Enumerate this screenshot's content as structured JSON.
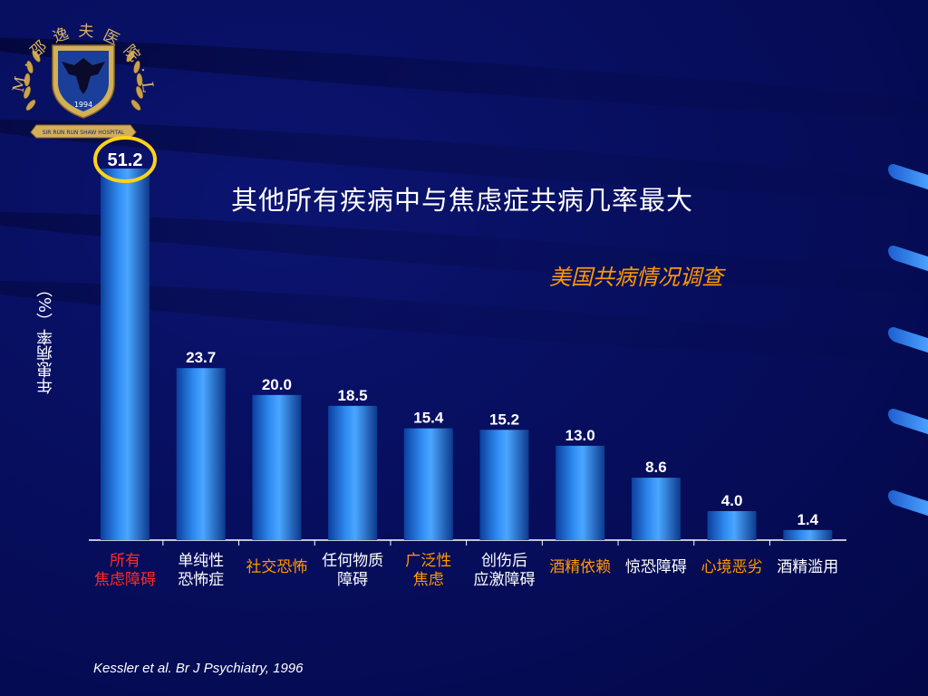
{
  "logo": {
    "arc_text": "ZUM · 邵 逸 夫 医 院 · LLU",
    "year": "1994",
    "ribbon_text": "SIR RUN RUN SHAW HOSPITAL"
  },
  "title": "其他所有疾病中与焦虑症共病几率最大",
  "subtitle": "美国共病情况调查",
  "citation": "Kessler et al. Br J Psychiatry, 1996",
  "colors": {
    "bar": "#2a7fe0",
    "label_highlight_red": "#ff2a2a",
    "label_highlight_orange": "#ff9900",
    "label_default": "#ffffff",
    "circle": "#ffd21a",
    "subtitle": "#ff9900"
  },
  "chart_data": {
    "type": "bar",
    "ylabel": "年患病率（%）",
    "ylim": [
      0,
      55
    ],
    "grid": false,
    "categories": [
      {
        "lines": [
          "所有",
          "焦虑障碍"
        ],
        "color": "red"
      },
      {
        "lines": [
          "单纯性",
          "恐怖症"
        ],
        "color": "white"
      },
      {
        "lines": [
          "社交恐怖"
        ],
        "color": "orange"
      },
      {
        "lines": [
          "任何物质",
          "障碍"
        ],
        "color": "white"
      },
      {
        "lines": [
          "广泛性",
          "焦虑"
        ],
        "color": "orange"
      },
      {
        "lines": [
          "创伤后",
          "应激障碍"
        ],
        "color": "white"
      },
      {
        "lines": [
          "酒精依赖"
        ],
        "color": "orange"
      },
      {
        "lines": [
          "惊恐障碍"
        ],
        "color": "white"
      },
      {
        "lines": [
          "心境恶劣"
        ],
        "color": "orange"
      },
      {
        "lines": [
          "酒精滥用"
        ],
        "color": "white"
      }
    ],
    "values": [
      51.2,
      23.7,
      20.0,
      18.5,
      15.4,
      15.2,
      13.0,
      8.6,
      4.0,
      1.4
    ],
    "value_labels": [
      "51.2",
      "23.7",
      "20.0",
      "18.5",
      "15.4",
      "15.2",
      "13.0",
      "8.6",
      "4.0",
      "1.4"
    ],
    "highlighted_index": 0
  }
}
